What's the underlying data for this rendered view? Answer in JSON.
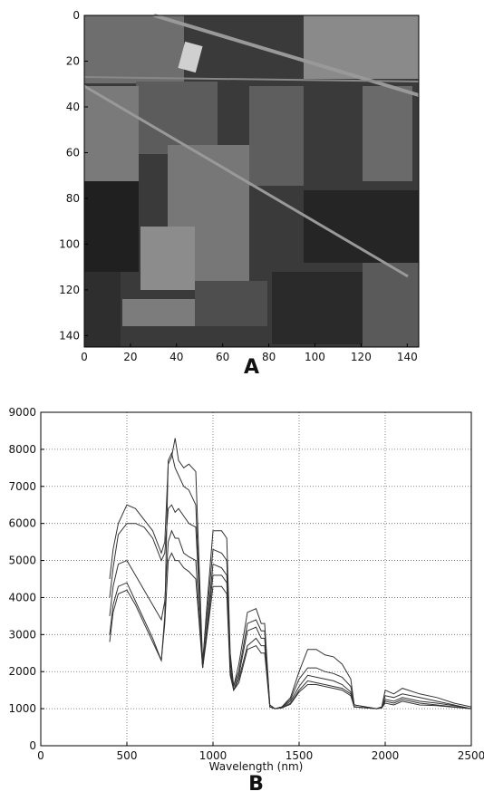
{
  "chart_data": [
    {
      "type": "image",
      "label": "A",
      "xlim": [
        0,
        145
      ],
      "ylim": [
        145,
        0
      ],
      "xticks": [
        0,
        20,
        40,
        60,
        80,
        100,
        120,
        140
      ],
      "yticks": [
        0,
        20,
        40,
        60,
        80,
        100,
        120,
        140
      ]
    },
    {
      "type": "line",
      "label": "B",
      "xlabel": "Wavelength (nm)",
      "xlim": [
        0,
        2500
      ],
      "ylim": [
        0,
        9000
      ],
      "xticks": [
        0,
        500,
        1000,
        1500,
        2000,
        2500
      ],
      "yticks": [
        0,
        1000,
        2000,
        3000,
        4000,
        5000,
        6000,
        7000,
        8000,
        9000
      ],
      "grid": true,
      "x": [
        400,
        420,
        450,
        500,
        550,
        600,
        650,
        700,
        720,
        740,
        760,
        780,
        800,
        830,
        860,
        900,
        940,
        960,
        1000,
        1050,
        1080,
        1100,
        1120,
        1150,
        1200,
        1250,
        1280,
        1300,
        1330,
        1360,
        1400,
        1450,
        1500,
        1550,
        1600,
        1650,
        1700,
        1750,
        1800,
        1820,
        1950,
        1980,
        2000,
        2050,
        2100,
        2200,
        2300,
        2400,
        2500
      ],
      "series": [
        {
          "color": "#333333",
          "values": [
            4500,
            5300,
            6000,
            6500,
            6400,
            6100,
            5800,
            5200,
            5500,
            7600,
            7800,
            8300,
            7700,
            7500,
            7600,
            7400,
            2200,
            3500,
            5800,
            5800,
            5600,
            2500,
            1600,
            2200,
            3600,
            3700,
            3300,
            3300,
            1100,
            1000,
            1050,
            1300,
            2000,
            2600,
            2600,
            2450,
            2400,
            2200,
            1800,
            1100,
            1000,
            1050,
            1500,
            1400,
            1550,
            1400,
            1300,
            1150,
            1050
          ]
        },
        {
          "color": "#333333",
          "values": [
            4000,
            4800,
            5700,
            6000,
            6000,
            5900,
            5600,
            5000,
            5200,
            6400,
            6500,
            6300,
            6400,
            6200,
            6000,
            5900,
            2300,
            3300,
            5300,
            5200,
            5000,
            2300,
            1600,
            2000,
            3300,
            3400,
            3100,
            3100,
            1100,
            1000,
            1050,
            1250,
            1800,
            2100,
            2100,
            2000,
            1950,
            1850,
            1600,
            1100,
            1000,
            1050,
            1350,
            1300,
            1400,
            1300,
            1200,
            1100,
            1000
          ]
        },
        {
          "color": "#333333",
          "values": [
            3500,
            4300,
            4900,
            5000,
            4600,
            4200,
            3800,
            3400,
            3900,
            5500,
            5800,
            5600,
            5600,
            5200,
            5100,
            5000,
            2100,
            3000,
            4900,
            4800,
            4600,
            2100,
            1500,
            1900,
            3100,
            3200,
            2900,
            2900,
            1050,
            1000,
            1030,
            1200,
            1600,
            1900,
            1850,
            1800,
            1750,
            1650,
            1450,
            1050,
            1000,
            1030,
            1250,
            1200,
            1300,
            1200,
            1150,
            1080,
            1000
          ]
        },
        {
          "color": "#333333",
          "values": [
            3000,
            3800,
            4300,
            4400,
            3900,
            3400,
            2900,
            2300,
            3500,
            7700,
            7900,
            7500,
            7300,
            7000,
            6900,
            6500,
            2100,
            2900,
            4600,
            4600,
            4400,
            2000,
            1500,
            1800,
            2700,
            2900,
            2700,
            2700,
            1050,
            1000,
            1020,
            1150,
            1500,
            1750,
            1700,
            1650,
            1600,
            1550,
            1400,
            1050,
            1000,
            1020,
            1200,
            1150,
            1250,
            1150,
            1100,
            1050,
            1000
          ]
        },
        {
          "color": "#333333",
          "values": [
            2800,
            3600,
            4100,
            4200,
            3800,
            3300,
            2800,
            2300,
            3300,
            5000,
            5200,
            5000,
            5000,
            4800,
            4700,
            4500,
            2100,
            2800,
            4300,
            4300,
            4100,
            1900,
            1500,
            1700,
            2600,
            2700,
            2500,
            2500,
            1050,
            1000,
            1020,
            1120,
            1450,
            1650,
            1650,
            1600,
            1550,
            1500,
            1350,
            1050,
            1000,
            1020,
            1150,
            1100,
            1200,
            1100,
            1080,
            1040,
            1000
          ]
        }
      ]
    }
  ]
}
